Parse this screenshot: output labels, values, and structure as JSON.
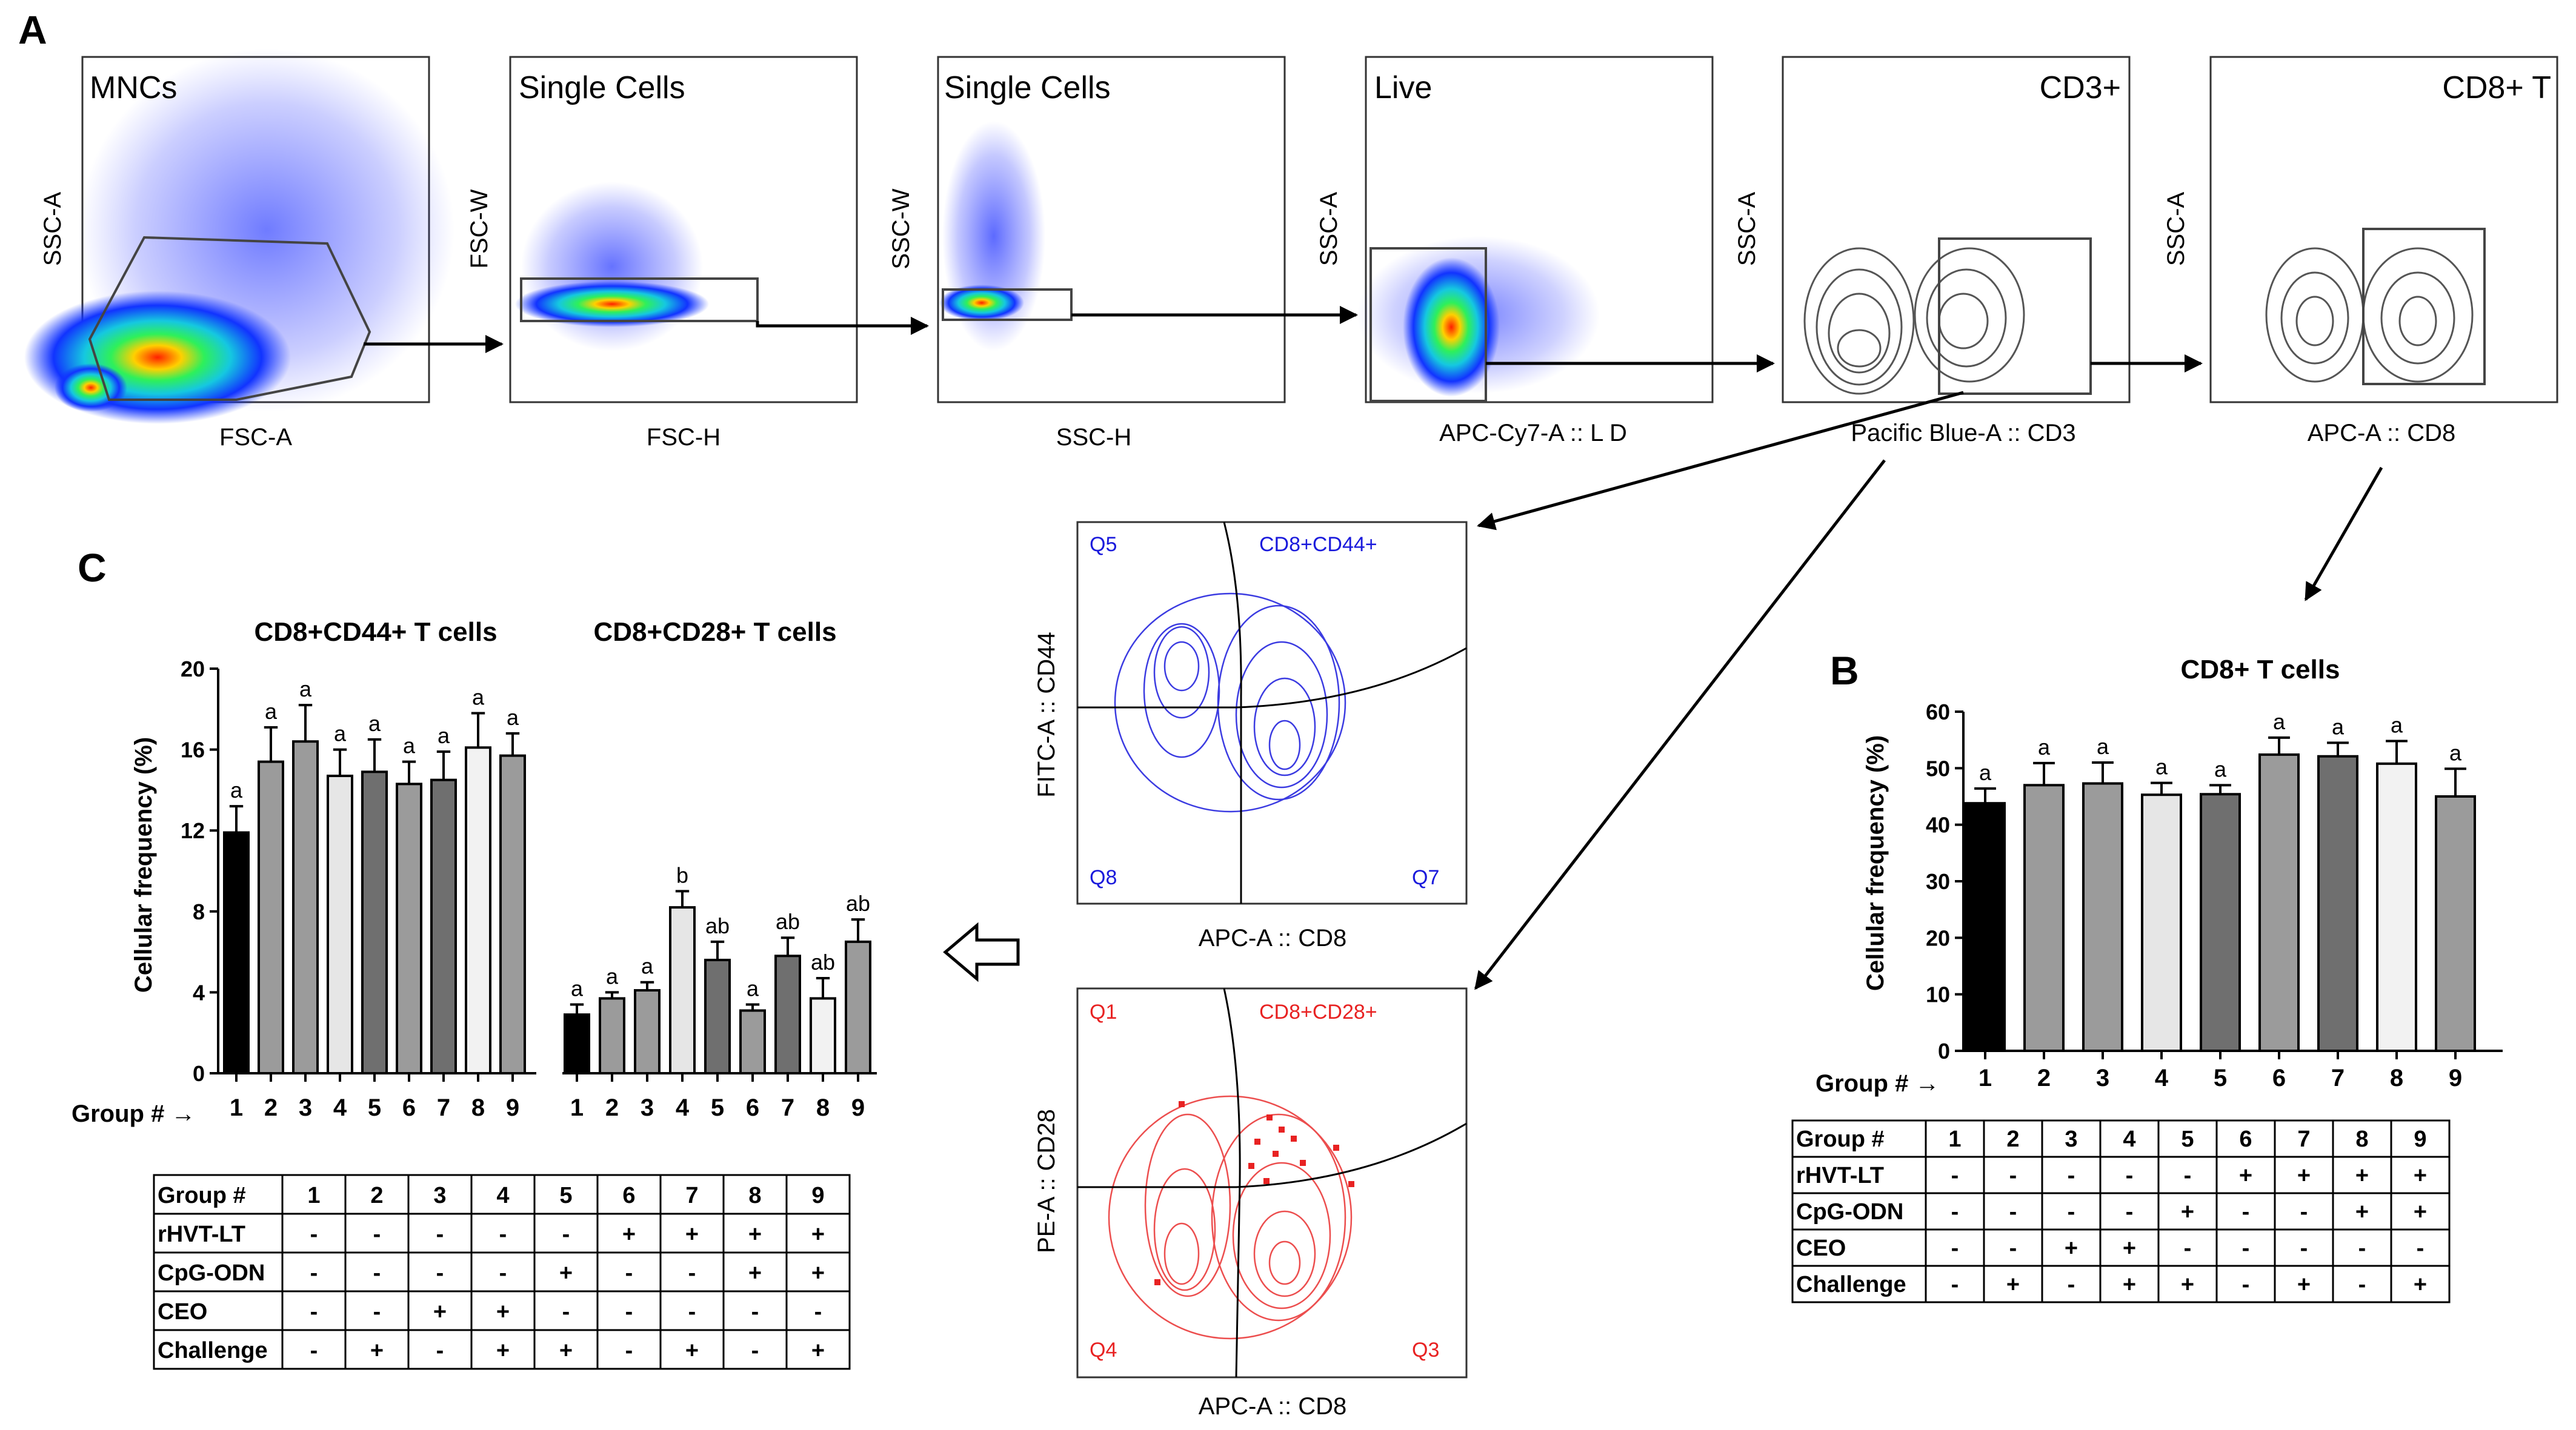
{
  "panel_letters": {
    "a": "A",
    "b": "B",
    "c": "C"
  },
  "gating": [
    {
      "title": "MNCs",
      "xlabel": "FSC-A",
      "ylabel": "SSC-A"
    },
    {
      "title": "Single Cells",
      "xlabel": "FSC-H",
      "ylabel": "FSC-W"
    },
    {
      "title": "Single Cells",
      "xlabel": "SSC-H",
      "ylabel": "SSC-W"
    },
    {
      "title": "Live",
      "xlabel": "APC-Cy7-A :: L D",
      "ylabel": "SSC-A"
    },
    {
      "title": "CD3+",
      "xlabel": "Pacific Blue-A :: CD3",
      "ylabel": "SSC-A"
    },
    {
      "title": "CD8+ T",
      "xlabel": "APC-A :: CD8",
      "ylabel": "SSC-A"
    }
  ],
  "quadrant_plots": [
    {
      "gate": "CD8+CD44+",
      "quadrants": [
        "Q5",
        "Q8",
        "Q7"
      ],
      "xlabel": "APC-A :: CD8",
      "ylabel": "FITC-A :: CD44",
      "color": "#1a1adc"
    },
    {
      "gate": "CD8+CD28+",
      "quadrants": [
        "Q1",
        "Q4",
        "Q3"
      ],
      "xlabel": "APC-A :: CD8",
      "ylabel": "PE-A :: CD28",
      "color": "#e82222"
    }
  ],
  "group_arrow_label": "Group # →",
  "chart_data": [
    {
      "type": "bar",
      "title": "CD8+CD44+ T cells",
      "ylabel": "Cellular frequency (%)",
      "ylim": [
        0,
        20
      ],
      "yticks": [
        "0",
        "4",
        "8",
        "12",
        "16",
        "20"
      ],
      "categories": [
        "1",
        "2",
        "3",
        "4",
        "5",
        "6",
        "7",
        "8",
        "9"
      ],
      "values": [
        11.9,
        15.4,
        16.4,
        14.7,
        14.9,
        14.3,
        14.5,
        16.1,
        15.7
      ],
      "errors": [
        1.3,
        1.7,
        1.8,
        1.3,
        1.6,
        1.1,
        1.4,
        1.7,
        1.1
      ],
      "labels": [
        "a",
        "a",
        "a",
        "a",
        "a",
        "a",
        "a",
        "a",
        "a"
      ]
    },
    {
      "type": "bar",
      "title": "CD8+CD28+ T cells",
      "ylim": [
        0,
        20
      ],
      "categories": [
        "1",
        "2",
        "3",
        "4",
        "5",
        "6",
        "7",
        "8",
        "9"
      ],
      "values": [
        2.9,
        3.7,
        4.1,
        8.2,
        5.6,
        3.1,
        5.8,
        3.7,
        6.5
      ],
      "errors": [
        0.5,
        0.3,
        0.4,
        0.8,
        0.9,
        0.3,
        0.9,
        1.0,
        1.1
      ],
      "labels": [
        "a",
        "a",
        "a",
        "b",
        "ab",
        "a",
        "ab",
        "ab",
        "ab"
      ]
    },
    {
      "type": "bar",
      "title": "CD8+ T cells",
      "ylabel": "Cellular frequency (%)",
      "ylim": [
        0,
        60
      ],
      "yticks": [
        "0",
        "10",
        "20",
        "30",
        "40",
        "50",
        "60"
      ],
      "categories": [
        "1",
        "2",
        "3",
        "4",
        "5",
        "6",
        "7",
        "8",
        "9"
      ],
      "values": [
        43.8,
        47.0,
        47.3,
        45.3,
        45.4,
        52.4,
        52.1,
        50.8,
        45.0
      ],
      "errors": [
        2.6,
        3.9,
        3.7,
        2.1,
        1.6,
        3.0,
        2.4,
        4.0,
        4.9
      ],
      "labels": [
        "a",
        "a",
        "a",
        "a",
        "a",
        "a",
        "a",
        "a",
        "a"
      ]
    }
  ],
  "fill_colors": [
    "#000000",
    "#9b9b9b",
    "#9b9b9b",
    "#e6e6e6",
    "#6f6f6f",
    "#9b9b9b",
    "#6f6f6f",
    "#f2f2f2",
    "#9b9b9b"
  ],
  "treatment_table": {
    "header": [
      "Group #",
      "1",
      "2",
      "3",
      "4",
      "5",
      "6",
      "7",
      "8",
      "9"
    ],
    "rows": [
      [
        "rHVT-LT",
        "-",
        "-",
        "-",
        "-",
        "-",
        "+",
        "+",
        "+",
        "+"
      ],
      [
        "CpG-ODN",
        "-",
        "-",
        "-",
        "-",
        "+",
        "-",
        "-",
        "+",
        "+"
      ],
      [
        "CEO",
        "-",
        "-",
        "+",
        "+",
        "-",
        "-",
        "-",
        "-",
        "-"
      ],
      [
        "Challenge",
        "-",
        "+",
        "-",
        "+",
        "+",
        "-",
        "+",
        "-",
        "+"
      ]
    ]
  }
}
